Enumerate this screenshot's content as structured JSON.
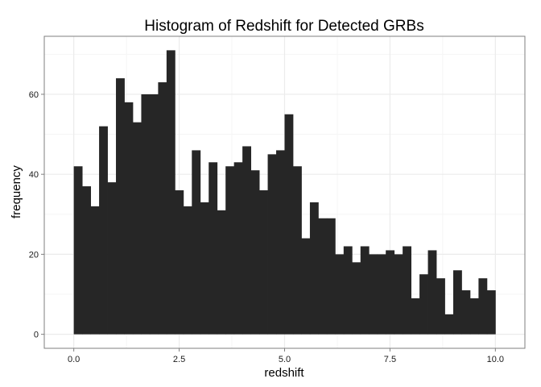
{
  "chart_data": {
    "type": "bar",
    "title": "Histogram of Redshift for Detected GRBs",
    "xlabel": "redshift",
    "ylabel": "frequency",
    "xlim": [
      -0.7,
      10.7
    ],
    "ylim": [
      -3.5,
      74.5
    ],
    "xticks": [
      0.0,
      2.5,
      5.0,
      7.5,
      10.0
    ],
    "xtick_labels": [
      "0.0",
      "2.5",
      "5.0",
      "7.5",
      "10.0"
    ],
    "yticks": [
      0,
      20,
      40,
      60
    ],
    "ytick_labels": [
      "0",
      "20",
      "40",
      "60"
    ],
    "grid": true,
    "bin_width": 0.2,
    "x_start": 0.0,
    "values": [
      42,
      37,
      32,
      52,
      38,
      64,
      58,
      53,
      60,
      60,
      63,
      71,
      36,
      32,
      46,
      33,
      43,
      31,
      42,
      43,
      47,
      41,
      36,
      45,
      46,
      55,
      42,
      24,
      33,
      29,
      29,
      20,
      22,
      18,
      22,
      20,
      20,
      21,
      20,
      22,
      9,
      15,
      21,
      14,
      5,
      16,
      11,
      9,
      14,
      11
    ],
    "colors": {
      "bar": "#262626",
      "panel_border": "#7f7f7f",
      "grid_major": "#ebebeb",
      "grid_minor": "#f5f5f5"
    }
  }
}
